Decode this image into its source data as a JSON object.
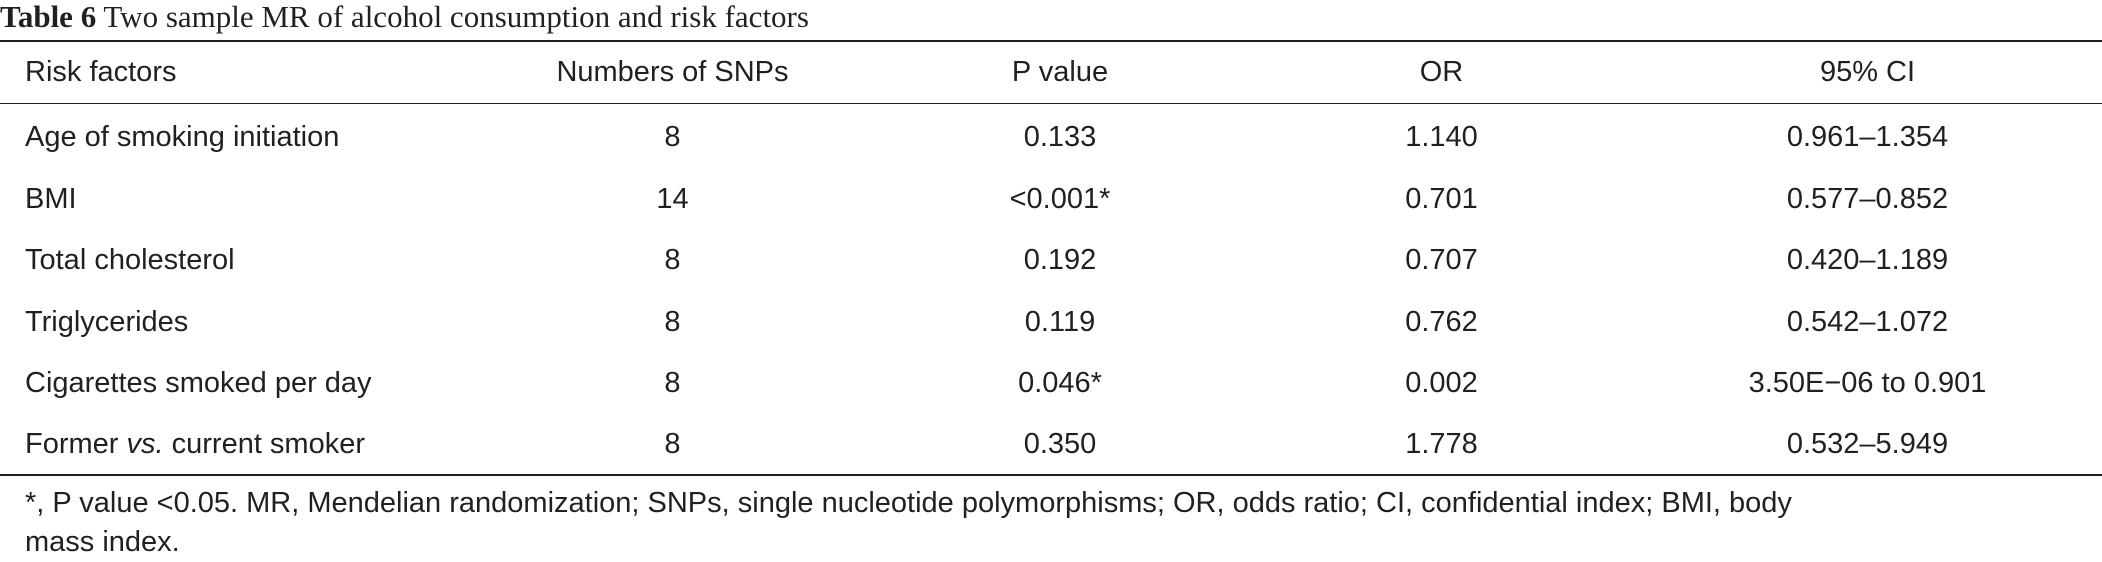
{
  "caption": {
    "label": "Table 6",
    "title": "Two sample MR of alcohol consumption and risk factors"
  },
  "table": {
    "headers": [
      "Risk factors",
      "Numbers of SNPs",
      "P value",
      "OR",
      "95% CI"
    ],
    "rows": [
      {
        "risk_factor_pre": "Age of smoking initiation",
        "risk_factor_italic": "",
        "risk_factor_post": "",
        "snps": "8",
        "p_value": "0.133",
        "or": "1.140",
        "ci": "0.961–1.354"
      },
      {
        "risk_factor_pre": "BMI",
        "risk_factor_italic": "",
        "risk_factor_post": "",
        "snps": "14",
        "p_value": "<0.001*",
        "or": "0.701",
        "ci": "0.577–0.852"
      },
      {
        "risk_factor_pre": "Total cholesterol",
        "risk_factor_italic": "",
        "risk_factor_post": "",
        "snps": "8",
        "p_value": "0.192",
        "or": "0.707",
        "ci": "0.420–1.189"
      },
      {
        "risk_factor_pre": "Triglycerides",
        "risk_factor_italic": "",
        "risk_factor_post": "",
        "snps": "8",
        "p_value": "0.119",
        "or": "0.762",
        "ci": "0.542–1.072"
      },
      {
        "risk_factor_pre": "Cigarettes smoked per day",
        "risk_factor_italic": "",
        "risk_factor_post": "",
        "snps": "8",
        "p_value": "0.046*",
        "or": "0.002",
        "ci": "3.50E−06 to 0.901"
      },
      {
        "risk_factor_pre": "Former ",
        "risk_factor_italic": "vs.",
        "risk_factor_post": " current smoker",
        "snps": "8",
        "p_value": "0.350",
        "or": "1.778",
        "ci": "0.532–5.949"
      }
    ]
  },
  "footnote": {
    "line1": "*, P value <0.05. MR, Mendelian randomization; SNPs, single nucleotide polymorphisms; OR, odds ratio; CI, confidential index; BMI, body",
    "line2": "mass index."
  }
}
